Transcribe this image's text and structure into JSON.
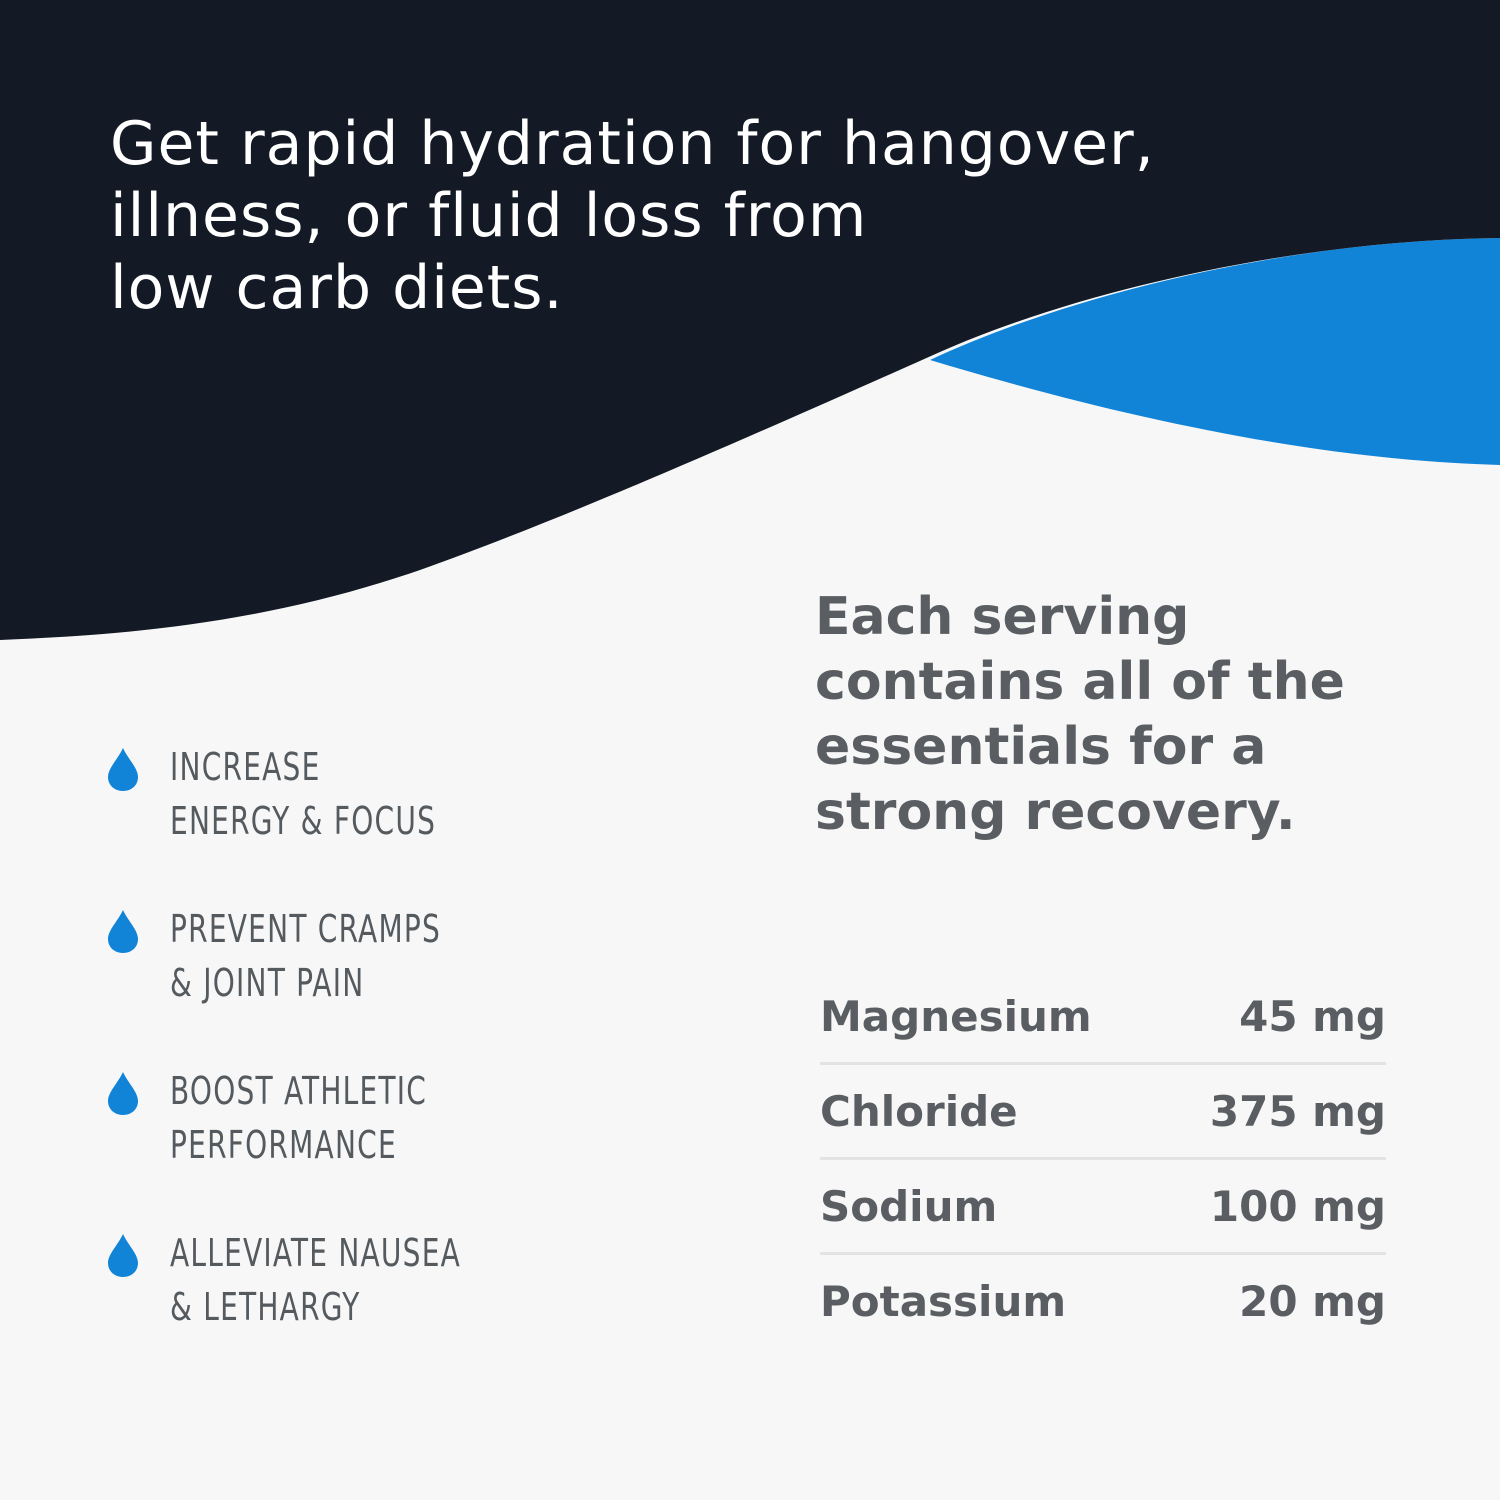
{
  "colors": {
    "navy": "#141a25",
    "blue": "#1184d8",
    "background": "#f7f7f7",
    "text_gray": "#5a5e62"
  },
  "headline": {
    "lines": [
      "Get rapid hydration for hangover,",
      "illness, or fluid loss from",
      "low carb diets."
    ]
  },
  "benefits": [
    {
      "icon": "water-drop-icon",
      "lines": [
        "INCREASE",
        "ENERGY & FOCUS"
      ]
    },
    {
      "icon": "water-drop-icon",
      "lines": [
        "PREVENT CRAMPS",
        "& JOINT PAIN"
      ]
    },
    {
      "icon": "water-drop-icon",
      "lines": [
        "BOOST ATHLETIC",
        "PERFORMANCE"
      ]
    },
    {
      "icon": "water-drop-icon",
      "lines": [
        "ALLEVIATE NAUSEA",
        "& LETHARGY"
      ]
    }
  ],
  "serving": {
    "lines": [
      "Each serving",
      "contains all of the",
      "essentials for a",
      "strong recovery."
    ]
  },
  "nutrients": [
    {
      "name": "Magnesium",
      "amount": "45 mg"
    },
    {
      "name": "Chloride",
      "amount": "375 mg"
    },
    {
      "name": "Sodium",
      "amount": "100 mg"
    },
    {
      "name": "Potassium",
      "amount": "20 mg"
    }
  ]
}
